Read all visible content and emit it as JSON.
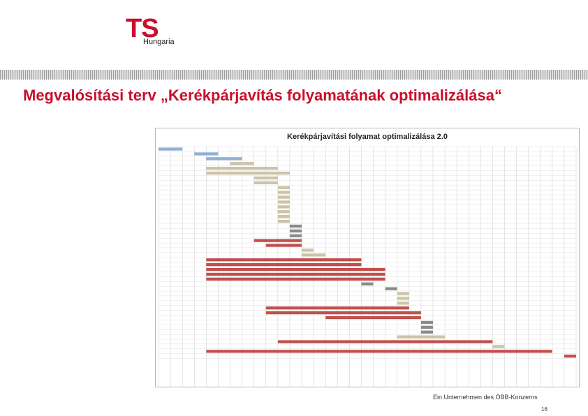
{
  "logo": {
    "mark": "TS",
    "sub": "Hungaria",
    "color": "#c8102e"
  },
  "slide": {
    "title": "Megvalósítási terv „Kerékpárjavítás folyamatának optimalizálása“",
    "footer": "Ein Unternehmen des ÖBB-Konzerns",
    "page": "16"
  },
  "chart_data": {
    "type": "gantt",
    "title": "Kerékpárjavítási folyamat optimalizálása 2.0",
    "time_unit": "column",
    "grid": true,
    "colors": {
      "blue": "#8fb1d5",
      "tan": "#cdc3a7",
      "gray": "#8a8a8a",
      "red": "#c0504d"
    },
    "tasks": [
      {
        "name": "",
        "start": 0,
        "end": 2,
        "color": "blue"
      },
      {
        "name": "",
        "start": 3,
        "end": 5,
        "color": "blue"
      },
      {
        "name": "",
        "start": 4,
        "end": 7,
        "color": "blue"
      },
      {
        "name": "",
        "start": 6,
        "end": 8,
        "color": "tan"
      },
      {
        "name": "",
        "start": 4,
        "end": 10,
        "color": "tan"
      },
      {
        "name": "",
        "start": 4,
        "end": 11,
        "color": "tan"
      },
      {
        "name": "",
        "start": 8,
        "end": 10,
        "color": "tan"
      },
      {
        "name": "",
        "start": 8,
        "end": 10,
        "color": "tan"
      },
      {
        "name": "",
        "start": 10,
        "end": 11,
        "color": "tan"
      },
      {
        "name": "",
        "start": 10,
        "end": 11,
        "color": "tan"
      },
      {
        "name": "",
        "start": 10,
        "end": 11,
        "color": "tan"
      },
      {
        "name": "",
        "start": 10,
        "end": 11,
        "color": "tan"
      },
      {
        "name": "",
        "start": 10,
        "end": 11,
        "color": "tan"
      },
      {
        "name": "",
        "start": 10,
        "end": 11,
        "color": "tan"
      },
      {
        "name": "",
        "start": 10,
        "end": 11,
        "color": "tan"
      },
      {
        "name": "",
        "start": 10,
        "end": 11,
        "color": "tan"
      },
      {
        "name": "",
        "start": 11,
        "end": 12,
        "color": "gray"
      },
      {
        "name": "",
        "start": 11,
        "end": 12,
        "color": "gray"
      },
      {
        "name": "",
        "start": 11,
        "end": 12,
        "color": "gray"
      },
      {
        "name": "",
        "start": 8,
        "end": 12,
        "color": "red"
      },
      {
        "name": "",
        "start": 9,
        "end": 12,
        "color": "red"
      },
      {
        "name": "",
        "start": 12,
        "end": 13,
        "color": "tan"
      },
      {
        "name": "",
        "start": 12,
        "end": 14,
        "color": "tan"
      },
      {
        "name": "",
        "start": 4,
        "end": 17,
        "color": "red"
      },
      {
        "name": "",
        "start": 4,
        "end": 17,
        "color": "red"
      },
      {
        "name": "",
        "start": 4,
        "end": 19,
        "color": "red"
      },
      {
        "name": "",
        "start": 4,
        "end": 19,
        "color": "red"
      },
      {
        "name": "",
        "start": 4,
        "end": 19,
        "color": "red"
      },
      {
        "name": "",
        "start": 17,
        "end": 18,
        "color": "gray"
      },
      {
        "name": "",
        "start": 19,
        "end": 20,
        "color": "gray"
      },
      {
        "name": "",
        "start": 20,
        "end": 21,
        "color": "tan"
      },
      {
        "name": "",
        "start": 20,
        "end": 21,
        "color": "tan"
      },
      {
        "name": "",
        "start": 20,
        "end": 21,
        "color": "tan"
      },
      {
        "name": "",
        "start": 9,
        "end": 21,
        "color": "red"
      },
      {
        "name": "",
        "start": 9,
        "end": 22,
        "color": "red"
      },
      {
        "name": "",
        "start": 14,
        "end": 22,
        "color": "red"
      },
      {
        "name": "",
        "start": 22,
        "end": 23,
        "color": "gray"
      },
      {
        "name": "",
        "start": 22,
        "end": 23,
        "color": "gray"
      },
      {
        "name": "",
        "start": 22,
        "end": 23,
        "color": "gray"
      },
      {
        "name": "",
        "start": 20,
        "end": 24,
        "color": "tan"
      },
      {
        "name": "",
        "start": 10,
        "end": 28,
        "color": "red"
      },
      {
        "name": "",
        "start": 28,
        "end": 29,
        "color": "tan"
      },
      {
        "name": "",
        "start": 4,
        "end": 33,
        "color": "red"
      },
      {
        "name": "",
        "start": 34,
        "end": 35,
        "color": "red"
      }
    ],
    "columns": 35,
    "x_tick_labels": []
  }
}
